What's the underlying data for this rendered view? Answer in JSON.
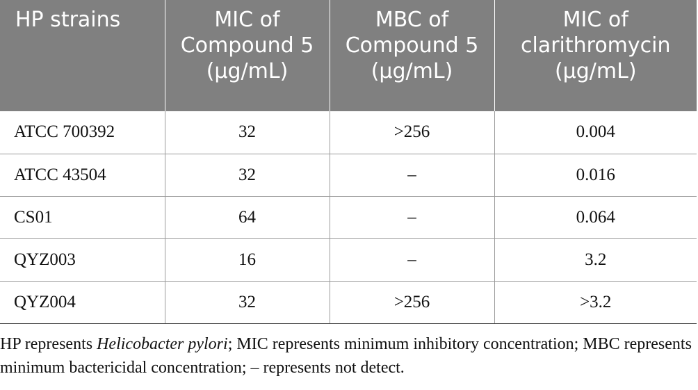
{
  "table": {
    "headers": [
      "HP strains",
      "MIC of Compound 5 (μg/mL)",
      "MBC of Compound 5 (μg/mL)",
      "MIC of clarithromycin (μg/mL)"
    ],
    "rows": [
      [
        "ATCC 700392",
        "32",
        ">256",
        "0.004"
      ],
      [
        "ATCC 43504",
        "32",
        "–",
        "0.016"
      ],
      [
        "CS01",
        "64",
        "–",
        "0.064"
      ],
      [
        "QYZ003",
        "16",
        "–",
        "3.2"
      ],
      [
        "QYZ004",
        "32",
        ">256",
        ">3.2"
      ]
    ]
  },
  "footnote": {
    "part1": "HP represents ",
    "italic": "Helicobacter pylori",
    "part2": "; MIC represents minimum inhibitory concentration; MBC represents minimum bactericidal concentration; – represents not detect."
  },
  "colors": {
    "header_bg": "#808080",
    "header_text": "#ffffff",
    "grid": "#9a9a9a"
  }
}
